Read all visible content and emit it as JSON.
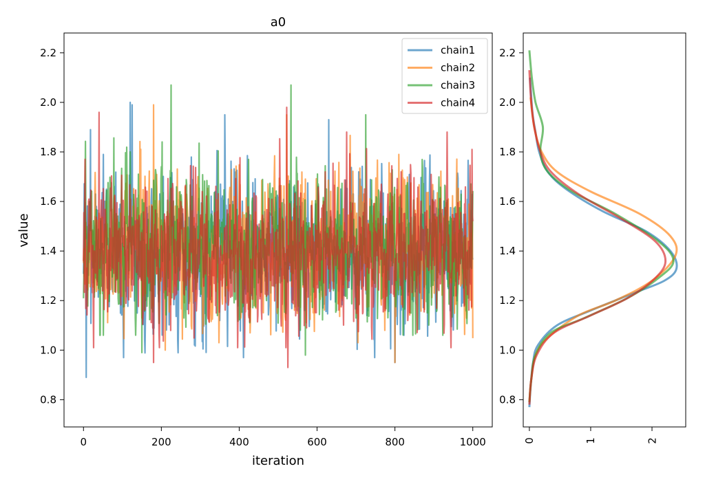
{
  "chart_data": [
    {
      "type": "line",
      "title": "a0",
      "xlabel": "iteration",
      "ylabel": "value",
      "xlim": [
        -50,
        1050
      ],
      "ylim": [
        0.69,
        2.28
      ],
      "xticks": [
        0,
        200,
        400,
        600,
        800,
        1000
      ],
      "yticks": [
        0.8,
        1.0,
        1.2,
        1.4,
        1.6,
        1.8,
        2.0,
        2.2
      ],
      "legend_position": "top-right",
      "n_iterations": 1000,
      "series": [
        {
          "name": "chain1",
          "color": "#1f77b4",
          "mean": 1.4,
          "min": 0.89,
          "max": 2.0,
          "extremes": [
            [
              7,
              0.89
            ],
            [
              18,
              1.89
            ],
            [
              120,
              2.0
            ],
            [
              125,
              1.99
            ],
            [
              363,
              1.95
            ],
            [
              630,
              1.93
            ],
            [
              800,
              0.95
            ]
          ]
        },
        {
          "name": "chain2",
          "color": "#ff7f0e",
          "mean": 1.41,
          "min": 0.95,
          "max": 1.99,
          "extremes": [
            [
              180,
              1.99
            ],
            [
              210,
              1.0
            ],
            [
              522,
              1.95
            ],
            [
              800,
              0.95
            ],
            [
              810,
              1.79
            ]
          ]
        },
        {
          "name": "chain3",
          "color": "#2ca02c",
          "mean": 1.4,
          "min": 0.98,
          "max": 2.07,
          "extremes": [
            [
              225,
              2.07
            ],
            [
              533,
              2.07
            ],
            [
              570,
              0.98
            ],
            [
              725,
              1.95
            ],
            [
              150,
              0.99
            ]
          ]
        },
        {
          "name": "chain4",
          "color": "#d62728",
          "mean": 1.39,
          "min": 0.93,
          "max": 1.98,
          "extremes": [
            [
              40,
              1.96
            ],
            [
              180,
              0.95
            ],
            [
              522,
              1.98
            ],
            [
              525,
              0.93
            ],
            [
              998,
              1.81
            ]
          ]
        }
      ]
    },
    {
      "type": "line",
      "title": "",
      "xlabel": "",
      "ylabel": "",
      "xlim": [
        -0.1,
        2.55
      ],
      "ylim": [
        0.69,
        2.28
      ],
      "xticks": [
        0,
        1,
        2
      ],
      "yticks": [
        0.8,
        1.0,
        1.2,
        1.4,
        1.6,
        1.8,
        2.0,
        2.2
      ],
      "xtick_rotation": 270,
      "series": [
        {
          "name": "chain1",
          "color": "#1f77b4",
          "points": [
            [
              0.0,
              0.77
            ],
            [
              0.02,
              0.85
            ],
            [
              0.06,
              0.95
            ],
            [
              0.14,
              1.02
            ],
            [
              0.45,
              1.1
            ],
            [
              1.0,
              1.16
            ],
            [
              1.7,
              1.23
            ],
            [
              2.2,
              1.28
            ],
            [
              2.4,
              1.33
            ],
            [
              2.3,
              1.4
            ],
            [
              1.9,
              1.48
            ],
            [
              1.2,
              1.56
            ],
            [
              0.6,
              1.65
            ],
            [
              0.3,
              1.72
            ],
            [
              0.16,
              1.8
            ],
            [
              0.1,
              1.88
            ],
            [
              0.05,
              1.96
            ],
            [
              0.01,
              2.1
            ]
          ]
        },
        {
          "name": "chain2",
          "color": "#ff7f0e",
          "points": [
            [
              0.0,
              0.79
            ],
            [
              0.03,
              0.88
            ],
            [
              0.1,
              0.98
            ],
            [
              0.3,
              1.05
            ],
            [
              0.8,
              1.14
            ],
            [
              1.4,
              1.2
            ],
            [
              2.0,
              1.28
            ],
            [
              2.38,
              1.38
            ],
            [
              2.3,
              1.46
            ],
            [
              1.8,
              1.55
            ],
            [
              1.0,
              1.64
            ],
            [
              0.45,
              1.72
            ],
            [
              0.2,
              1.8
            ],
            [
              0.08,
              1.9
            ],
            [
              0.02,
              2.02
            ]
          ]
        },
        {
          "name": "chain3",
          "color": "#2ca02c",
          "points": [
            [
              0.0,
              0.79
            ],
            [
              0.03,
              0.88
            ],
            [
              0.1,
              0.98
            ],
            [
              0.35,
              1.07
            ],
            [
              0.9,
              1.13
            ],
            [
              1.6,
              1.21
            ],
            [
              2.1,
              1.29
            ],
            [
              2.35,
              1.36
            ],
            [
              2.1,
              1.44
            ],
            [
              1.4,
              1.55
            ],
            [
              0.7,
              1.64
            ],
            [
              0.3,
              1.72
            ],
            [
              0.18,
              1.8
            ],
            [
              0.22,
              1.9
            ],
            [
              0.1,
              2.0
            ],
            [
              0.04,
              2.1
            ],
            [
              0.0,
              2.21
            ]
          ]
        },
        {
          "name": "chain4",
          "color": "#d62728",
          "points": [
            [
              0.0,
              0.78
            ],
            [
              0.03,
              0.88
            ],
            [
              0.12,
              0.98
            ],
            [
              0.4,
              1.07
            ],
            [
              1.0,
              1.14
            ],
            [
              1.6,
              1.21
            ],
            [
              2.05,
              1.29
            ],
            [
              2.22,
              1.36
            ],
            [
              2.05,
              1.44
            ],
            [
              1.5,
              1.53
            ],
            [
              0.8,
              1.63
            ],
            [
              0.35,
              1.72
            ],
            [
              0.18,
              1.8
            ],
            [
              0.08,
              1.9
            ],
            [
              0.03,
              2.0
            ],
            [
              0.0,
              2.13
            ]
          ]
        }
      ]
    }
  ]
}
